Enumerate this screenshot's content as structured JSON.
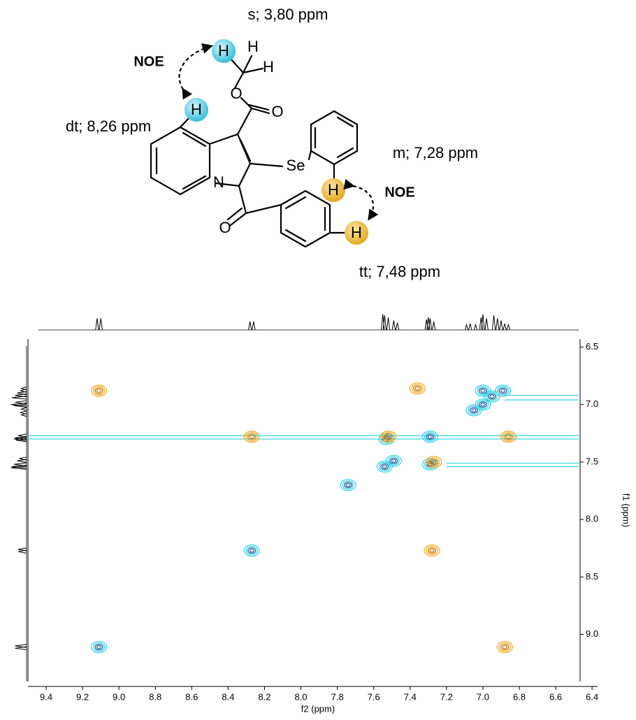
{
  "chart_data": {
    "type": "contour",
    "annotations": [
      "s; 3,80 ppm",
      "NOE",
      "dt; 8,26 ppm",
      "m; 7,28 ppm",
      "NOE",
      "tt; 7,48 ppm"
    ],
    "atoms": [
      "H",
      "H",
      "H",
      "O",
      "O",
      "H",
      "Se",
      "N",
      "O",
      "H",
      "H"
    ],
    "xlabel": "f2 (ppm)",
    "ylabel": "f1 (ppm)",
    "xlim": [
      9.5,
      6.37
    ],
    "ylim": [
      6.43,
      9.41
    ],
    "xticks": [
      9.4,
      9.2,
      {
        "value": 9,
        "label": "9.0"
      },
      8.8,
      8.6,
      8.4,
      8.2,
      {
        "value": 8,
        "label": "8.0"
      },
      7.8,
      7.6,
      7.4,
      7.2,
      {
        "value": 7,
        "label": "7.0"
      },
      6.8,
      6.6,
      6.4
    ],
    "yticks": [
      6.5,
      {
        "value": 7,
        "label": "7.0"
      },
      7.5,
      {
        "value": 8,
        "label": "8.0"
      },
      8.5,
      {
        "value": 9,
        "label": "9.0"
      }
    ],
    "projection": {
      "x": [
        9.12,
        9.1,
        8.28,
        8.26,
        7.55,
        7.54,
        7.52,
        7.49,
        7.47,
        7.31,
        7.3,
        7.29,
        7.27,
        7.09,
        7.07,
        7.04,
        7.01,
        7.0,
        6.98,
        6.94,
        6.92,
        6.9,
        6.88,
        6.86
      ],
      "values": [
        0.55,
        0.55,
        0.4,
        0.4,
        0.75,
        0.7,
        0.6,
        0.45,
        0.35,
        0.5,
        0.6,
        0.55,
        0.4,
        0.25,
        0.3,
        0.25,
        0.6,
        0.75,
        0.55,
        0.7,
        0.55,
        0.45,
        0.3,
        0.25
      ]
    },
    "streaks": {
      "color": "#2ed3e6",
      "f1": [
        6.92,
        6.96,
        7.27,
        7.3,
        7.51,
        7.54
      ],
      "from": [
        6.88,
        6.88,
        9.5,
        9.5,
        7.2,
        7.2
      ]
    },
    "series": [
      {
        "color": "#2ed3e6",
        "core": "#1b5e9e",
        "x": [
          9.11,
          8.27,
          7.54,
          7.49,
          7.29,
          7.05,
          7.0,
          6.95,
          6.89,
          7.53,
          7.29,
          7.74,
          7.0
        ],
        "values": [
          9.11,
          8.27,
          7.54,
          7.49,
          7.28,
          7.05,
          7.0,
          6.93,
          6.88,
          7.3,
          7.52,
          7.7,
          6.88
        ]
      },
      {
        "color": "#f2a81d",
        "core": "#c47a00",
        "x": [
          9.11,
          6.88,
          8.27,
          7.28,
          7.27,
          7.52,
          7.36,
          6.86
        ],
        "values": [
          6.88,
          9.11,
          7.28,
          8.27,
          7.5,
          7.28,
          6.86,
          7.28
        ]
      }
    ]
  }
}
